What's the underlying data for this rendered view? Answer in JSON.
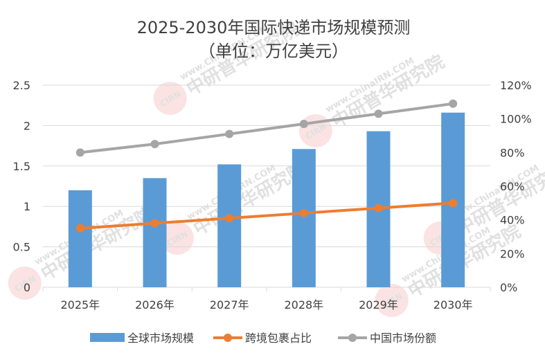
{
  "chart_data": {
    "type": "bar",
    "title": "2025-2030年国际快递市场规模预测",
    "subtitle": "（单位：万亿美元）",
    "categories": [
      "2025年",
      "2026年",
      "2027年",
      "2028年",
      "2029年",
      "2030年"
    ],
    "series": [
      {
        "name": "全球市场规模",
        "type": "bar",
        "axis": "left",
        "color": "#5b9bd5",
        "values": [
          1.2,
          1.35,
          1.52,
          1.71,
          1.93,
          2.16
        ]
      },
      {
        "name": "跨境包裹占比",
        "type": "line",
        "axis": "right",
        "color": "#ed7d31",
        "values": [
          0.35,
          0.38,
          0.41,
          0.44,
          0.47,
          0.5
        ]
      },
      {
        "name": "中国市场份额",
        "type": "line",
        "axis": "right",
        "color": "#a5a5a5",
        "values": [
          0.8,
          0.85,
          0.91,
          0.97,
          1.03,
          1.09
        ]
      }
    ],
    "y_left": {
      "min": 0,
      "max": 2.5,
      "step": 0.5,
      "tick_labels": [
        "0",
        "0.5",
        "1",
        "1.5",
        "2",
        "2.5"
      ]
    },
    "y_right": {
      "min": 0,
      "max": 1.2,
      "step": 0.2,
      "tick_labels": [
        "0%",
        "20%",
        "40%",
        "60%",
        "80%",
        "100%",
        "120%"
      ]
    },
    "grid": true,
    "legend_position": "bottom"
  },
  "watermark": {
    "site": "www.ChinaIRN.COM",
    "name": "中研普华研究院",
    "logo": "CIRN"
  }
}
